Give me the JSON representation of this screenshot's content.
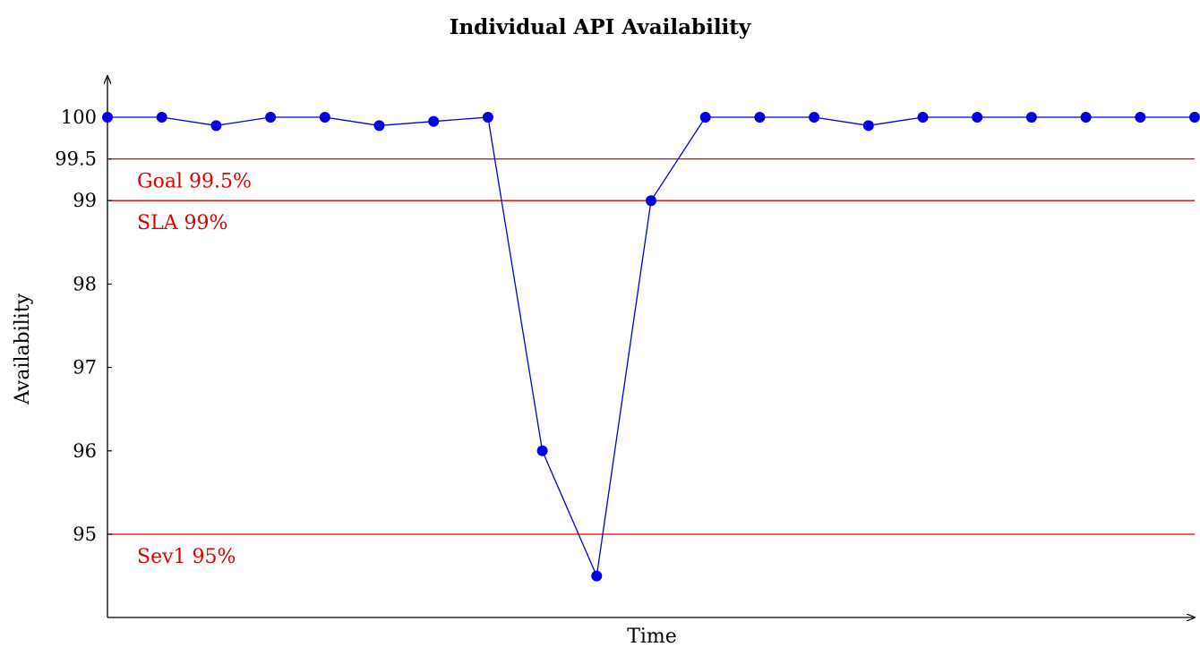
{
  "chart_data": {
    "type": "line",
    "title": "Individual API Availability",
    "xlabel": "Time",
    "ylabel": "Availability",
    "ylim": [
      94.5,
      100.5
    ],
    "yticks": [
      {
        "value": 95,
        "label": "95"
      },
      {
        "value": 96,
        "label": "96"
      },
      {
        "value": 97,
        "label": "97"
      },
      {
        "value": 98,
        "label": "98"
      },
      {
        "value": 99,
        "label": "99"
      },
      {
        "value": 99.5,
        "label": "99.5"
      },
      {
        "value": 100,
        "label": "100"
      }
    ],
    "x": [
      1,
      2,
      3,
      4,
      5,
      6,
      7,
      8,
      9,
      10,
      11,
      12,
      13,
      14,
      15,
      16,
      17,
      18,
      19,
      20,
      21
    ],
    "series": [
      {
        "values": [
          100,
          100,
          99.9,
          100,
          100,
          99.9,
          99.95,
          100,
          96,
          94.5,
          99,
          100,
          100,
          100,
          99.9,
          100,
          100,
          100,
          100,
          100,
          100
        ],
        "color": "#0000e0"
      }
    ],
    "reference_lines": [
      {
        "value": 99.5,
        "label": "Goal 99.5%",
        "color": "#e00000"
      },
      {
        "value": 99,
        "label": "SLA 99%",
        "color": "#e00000"
      },
      {
        "value": 95,
        "label": "Sev1 95%",
        "color": "#e00000"
      }
    ],
    "grid": false,
    "legend": "none"
  }
}
